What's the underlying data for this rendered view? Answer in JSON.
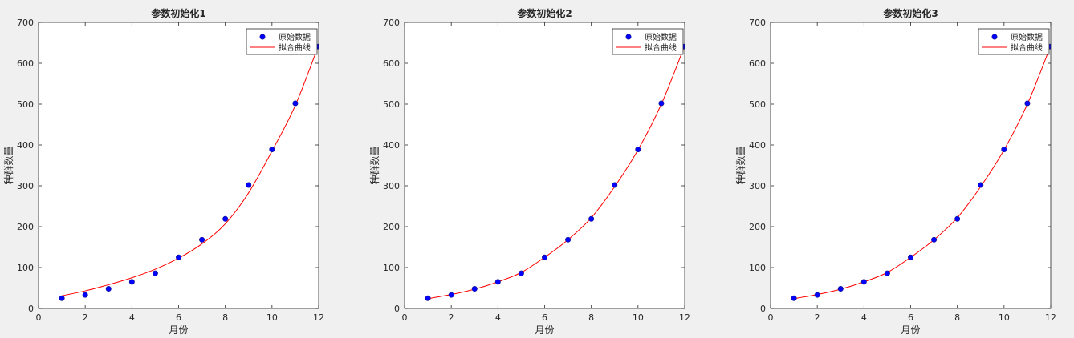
{
  "chart_data": [
    {
      "type": "line",
      "title": "参数初始化1",
      "xlabel": "月份",
      "ylabel": "种群数量",
      "xlim": [
        0,
        12
      ],
      "ylim": [
        0,
        700
      ],
      "x_ticks": [
        0,
        2,
        4,
        6,
        8,
        10,
        12
      ],
      "y_ticks": [
        0,
        100,
        200,
        300,
        400,
        500,
        600,
        700
      ],
      "grid": false,
      "legend_position": "top-right",
      "series": [
        {
          "name": "原始数据",
          "style": "markers",
          "color": "#0000ff",
          "x": [
            1,
            2,
            3,
            4,
            5,
            6,
            7,
            8,
            9,
            10,
            11,
            12
          ],
          "y": [
            25,
            33,
            48,
            65,
            86,
            125,
            168,
            219,
            302,
            389,
            502,
            641
          ]
        },
        {
          "name": "拟合曲线",
          "style": "line",
          "color": "#ff0000",
          "x": [
            1,
            2,
            3,
            4,
            5,
            6,
            7,
            8,
            9,
            10,
            11,
            12
          ],
          "y": [
            31,
            43,
            58,
            75,
            96,
            123,
            158,
            207,
            283,
            385,
            497,
            645
          ]
        }
      ]
    },
    {
      "type": "line",
      "title": "参数初始化2",
      "xlabel": "月份",
      "ylabel": "种群数量",
      "xlim": [
        0,
        12
      ],
      "ylim": [
        0,
        700
      ],
      "x_ticks": [
        0,
        2,
        4,
        6,
        8,
        10,
        12
      ],
      "y_ticks": [
        0,
        100,
        200,
        300,
        400,
        500,
        600,
        700
      ],
      "grid": false,
      "legend_position": "top-right",
      "series": [
        {
          "name": "原始数据",
          "style": "markers",
          "color": "#0000ff",
          "x": [
            1,
            2,
            3,
            4,
            5,
            6,
            7,
            8,
            9,
            10,
            11,
            12
          ],
          "y": [
            25,
            33,
            48,
            65,
            86,
            125,
            168,
            219,
            302,
            389,
            502,
            641
          ]
        },
        {
          "name": "拟合曲线",
          "style": "line",
          "color": "#ff0000",
          "x": [
            1,
            2,
            3,
            4,
            5,
            6,
            7,
            8,
            9,
            10,
            11,
            12
          ],
          "y": [
            24,
            34,
            47,
            65,
            88,
            125,
            168,
            222,
            298,
            388,
            500,
            643
          ]
        }
      ]
    },
    {
      "type": "line",
      "title": "参数初始化3",
      "xlabel": "月份",
      "ylabel": "种群数量",
      "xlim": [
        0,
        12
      ],
      "ylim": [
        0,
        700
      ],
      "x_ticks": [
        0,
        2,
        4,
        6,
        8,
        10,
        12
      ],
      "y_ticks": [
        0,
        100,
        200,
        300,
        400,
        500,
        600,
        700
      ],
      "grid": false,
      "legend_position": "top-right",
      "series": [
        {
          "name": "原始数据",
          "style": "markers",
          "color": "#0000ff",
          "x": [
            1,
            2,
            3,
            4,
            5,
            6,
            7,
            8,
            9,
            10,
            11,
            12
          ],
          "y": [
            25,
            33,
            48,
            65,
            86,
            125,
            168,
            219,
            302,
            389,
            502,
            641
          ]
        },
        {
          "name": "拟合曲线",
          "style": "line",
          "color": "#ff0000",
          "x": [
            1,
            2,
            3,
            4,
            5,
            6,
            7,
            8,
            9,
            10,
            11,
            12
          ],
          "y": [
            24,
            34,
            47,
            65,
            88,
            125,
            168,
            222,
            298,
            388,
            500,
            643
          ]
        }
      ]
    }
  ]
}
